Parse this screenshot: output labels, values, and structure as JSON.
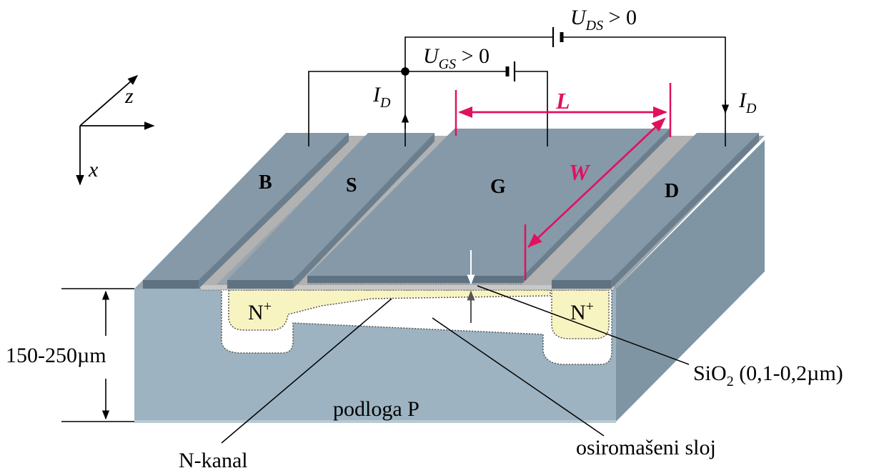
{
  "voltages": {
    "uds": {
      "symbol": "U",
      "sub": "DS",
      "relation": " > 0"
    },
    "ugs": {
      "symbol": "U",
      "sub": "GS",
      "relation": " > 0"
    }
  },
  "currents": {
    "left": {
      "symbol": "I",
      "sub": "D"
    },
    "right": {
      "symbol": "I",
      "sub": "D"
    }
  },
  "axes": {
    "z": "z",
    "x": "x"
  },
  "electrodes": {
    "b": "B",
    "s": "S",
    "g": "G",
    "d": "D"
  },
  "dimensions": {
    "length": "L",
    "width": "W",
    "thickness": "150-250µm"
  },
  "regions": {
    "n_plus_left": {
      "main": "N",
      "sup": "+"
    },
    "n_plus_right": {
      "main": "N",
      "sup": "+"
    },
    "substrate": "podloga P",
    "channel": "N-kanal",
    "depletion": "osiromašeni sloj",
    "oxide": {
      "main": "SiO",
      "sub": "2",
      "rest": " (0,1-0,2µm)"
    }
  },
  "colors": {
    "block_front": "#9db3c1",
    "block_right": "#7f95a3",
    "block_top": "#9aa5ad",
    "electrode_top": "#8699a8",
    "electrode_edge": "#5f7282",
    "n_plus": "#f8f4c2",
    "dimension_pink": "#e0115f"
  }
}
